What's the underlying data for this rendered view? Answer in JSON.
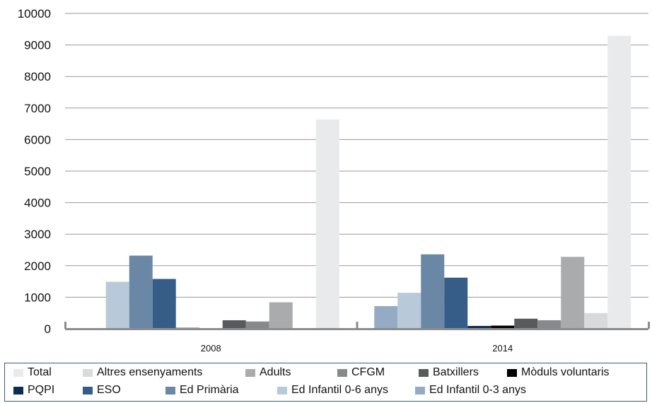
{
  "chart_data": {
    "type": "bar",
    "categories": [
      "2008",
      "2014"
    ],
    "ylim": [
      0,
      10000
    ],
    "yticks": [
      0,
      1000,
      2000,
      3000,
      4000,
      5000,
      6000,
      7000,
      8000,
      9000,
      10000
    ],
    "grid": true,
    "legend_position": "bottom",
    "series": [
      {
        "name": "Ed Infantil 0-3 anys",
        "color": "#94abc3",
        "values": [
          0,
          720
        ]
      },
      {
        "name": "Ed Infantil 0-6 anys",
        "color": "#b8c9da",
        "values": [
          1490,
          1140
        ]
      },
      {
        "name": "Ed Primària",
        "color": "#6a87a6",
        "values": [
          2320,
          2360
        ]
      },
      {
        "name": "ESO",
        "color": "#355d88",
        "values": [
          1580,
          1620
        ]
      },
      {
        "name": "PQPI",
        "color": "#0f2c50",
        "values": [
          30,
          90
        ]
      },
      {
        "name": "Mòduls voluntaris",
        "color": "#000000",
        "values": [
          0,
          100
        ]
      },
      {
        "name": "Batxillers",
        "color": "#585a5e",
        "values": [
          270,
          320
        ]
      },
      {
        "name": "CFGM",
        "color": "#87898c",
        "values": [
          230,
          270
        ]
      },
      {
        "name": "Adults",
        "color": "#aaabad",
        "values": [
          840,
          2280
        ]
      },
      {
        "name": "Altres ensenyaments",
        "color": "#d9dadb",
        "values": [
          0,
          500
        ]
      },
      {
        "name": "Total",
        "color": "#e9eaeb",
        "values": [
          6640,
          9290
        ]
      }
    ]
  },
  "legend": {
    "rows": [
      [
        "Total",
        "Altres ensenyaments",
        "Adults",
        "CFGM",
        "Batxillers",
        "Mòduls voluntaris"
      ],
      [
        "PQPI",
        "ESO",
        "Ed Primària",
        "Ed Infantil 0-6 anys",
        "Ed Infantil 0-3 anys"
      ]
    ]
  }
}
